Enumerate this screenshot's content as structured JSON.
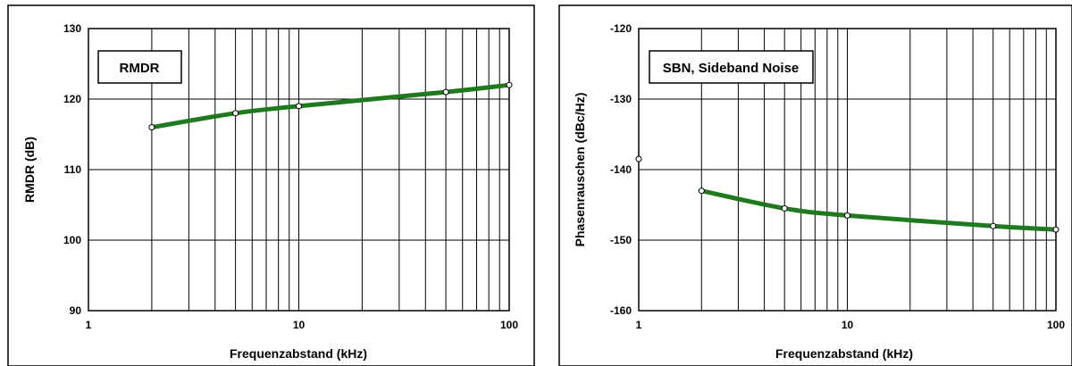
{
  "chart_data": [
    {
      "type": "line",
      "title": "RMDR",
      "xlabel": "Frequenzabstand (kHz)",
      "ylabel": "RMDR (dB)",
      "x_scale": "log",
      "xlim": [
        1,
        100
      ],
      "ylim": [
        90,
        130
      ],
      "x_ticks": [
        "1",
        "10",
        "100"
      ],
      "y_ticks": [
        "90",
        "100",
        "110",
        "120",
        "130"
      ],
      "grid": true,
      "legend": "top-left",
      "line_color": "#1f7a1f",
      "series": [
        {
          "x": [
            2,
            5,
            10,
            50,
            100
          ],
          "y": [
            116,
            118,
            119,
            121,
            122
          ]
        }
      ]
    },
    {
      "type": "line",
      "title": "SBN, Sideband Noise",
      "xlabel": "Frequenzabstand (kHz)",
      "ylabel": "Phasenrauschen (dBc/Hz)",
      "x_scale": "log",
      "xlim": [
        1,
        100
      ],
      "ylim": [
        -160,
        -120
      ],
      "x_ticks": [
        "1",
        "10",
        "100"
      ],
      "y_ticks": [
        "-160",
        "-150",
        "-140",
        "-130",
        "-120"
      ],
      "grid": true,
      "legend": "top-left",
      "line_color": "#1f7a1f",
      "isolated_point": {
        "x": 1,
        "y": -138.5
      },
      "series": [
        {
          "x": [
            2,
            5,
            10,
            50,
            100
          ],
          "y": [
            -143,
            -145.5,
            -146.5,
            -148,
            -148.5
          ]
        }
      ]
    }
  ]
}
